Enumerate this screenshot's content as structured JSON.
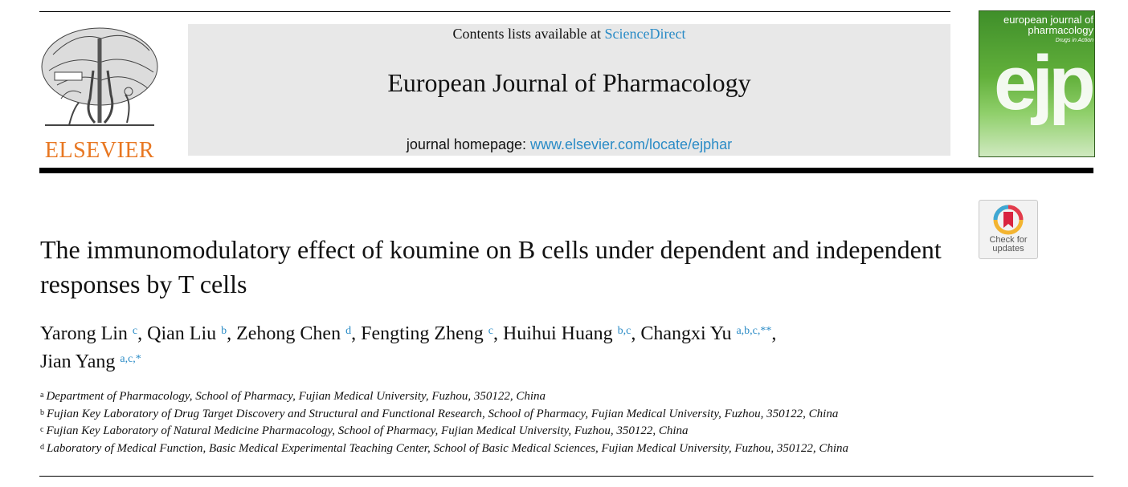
{
  "header": {
    "publisher_logo_text": "ELSEVIER",
    "contents_prefix": "Contents lists available at ",
    "contents_link": "ScienceDirect",
    "journal_title": "European Journal of Pharmacology",
    "homepage_prefix": "journal homepage: ",
    "homepage_link": "www.elsevier.com/locate/ejphar"
  },
  "cover": {
    "line1": "european journal of",
    "line2": "pharmacology",
    "line3": "Drugs in Action",
    "mark": "ejp"
  },
  "crossmark": {
    "line1": "Check for",
    "line2": "updates"
  },
  "article": {
    "title": "The immunomodulatory effect of koumine on B cells under dependent and independent responses by T cells"
  },
  "authors": [
    {
      "name": "Yarong Lin",
      "sup": "c",
      "sep": ", "
    },
    {
      "name": "Qian Liu",
      "sup": "b",
      "sep": ", "
    },
    {
      "name": "Zehong Chen",
      "sup": "d",
      "sep": ", "
    },
    {
      "name": "Fengting Zheng",
      "sup": "c",
      "sep": ", "
    },
    {
      "name": "Huihui Huang",
      "sup": "b,c",
      "sep": ", "
    },
    {
      "name": "Changxi Yu",
      "sup": "a,b,c,**",
      "sep": ","
    },
    {
      "name": "Jian Yang",
      "sup": "a,c,*",
      "sep": ""
    }
  ],
  "affiliations": [
    {
      "key": "a",
      "text": "Department of Pharmacology, School of Pharmacy, Fujian Medical University, Fuzhou, 350122, China"
    },
    {
      "key": "b",
      "text": "Fujian Key Laboratory of Drug Target Discovery and Structural and Functional Research, School of Pharmacy, Fujian Medical University, Fuzhou, 350122, China"
    },
    {
      "key": "c",
      "text": "Fujian Key Laboratory of Natural Medicine Pharmacology, School of Pharmacy, Fujian Medical University, Fuzhou, 350122, China"
    },
    {
      "key": "d",
      "text": "Laboratory of Medical Function, Basic Medical Experimental Teaching Center, School of Basic Medical Sciences, Fujian Medical University, Fuzhou, 350122, China"
    }
  ],
  "colors": {
    "link": "#2a8bc6",
    "elsevier_orange": "#e87722",
    "banner_bg": "#e8e8e8",
    "cover_green": "#62b03b"
  }
}
